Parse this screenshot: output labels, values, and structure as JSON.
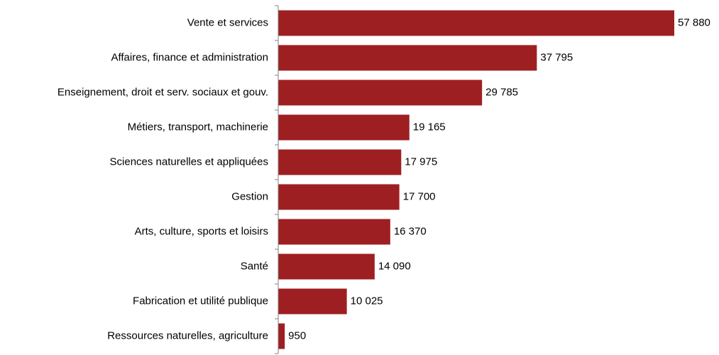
{
  "chart_data": {
    "type": "bar",
    "orientation": "horizontal",
    "categories": [
      "Vente et services",
      "Affaires, finance et administration",
      "Enseignement, droit et serv. sociaux et gouv.",
      "Métiers, transport, machinerie",
      "Sciences naturelles et appliquées",
      "Gestion",
      "Arts, culture, sports et loisirs",
      "Santé",
      "Fabrication et utilité publique",
      "Ressources naturelles, agriculture"
    ],
    "values": [
      57880,
      37795,
      29785,
      19165,
      17975,
      17700,
      16370,
      14090,
      10025,
      950
    ],
    "value_labels": [
      "57 880",
      "37 795",
      "29 785",
      "19 165",
      "17 975",
      "17 700",
      "16 370",
      "14 090",
      "10 025",
      "950"
    ],
    "xlim": [
      0,
      57880
    ],
    "bar_color": "#9e1f22",
    "grid": false,
    "legend": "none"
  }
}
